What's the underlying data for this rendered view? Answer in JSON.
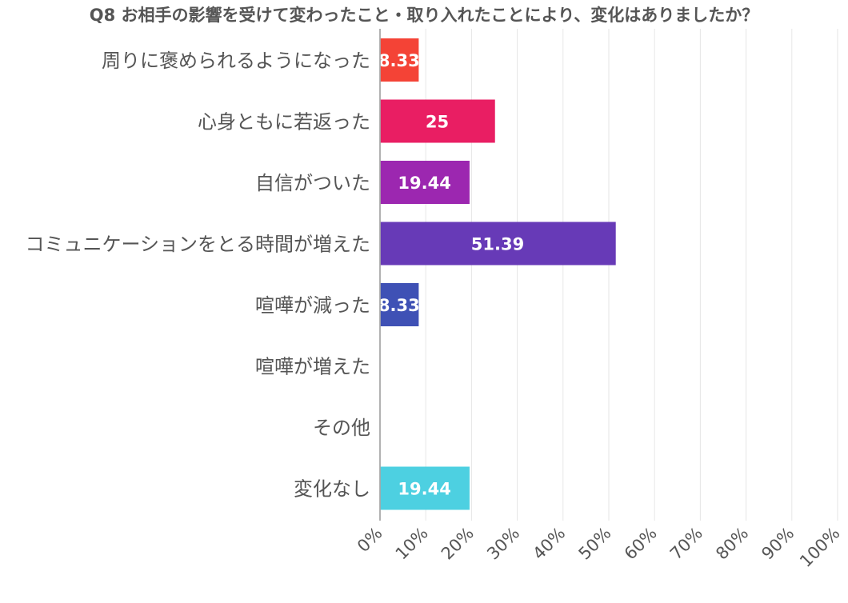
{
  "chart_data": {
    "type": "bar",
    "orientation": "horizontal",
    "title": "Q8 お相手の影響を受けて変わったこと・取り入れたことにより、変化はありましたか？",
    "xlabel": "",
    "ylabel": "",
    "categories": [
      "周りに褒められるようになった",
      "心身ともに若返った",
      "自信がついた",
      "コミュニケーションをとる時間が増えた",
      "喧嘩が減った",
      "喧嘩が増えた",
      "その他",
      "変化なし"
    ],
    "values": [
      8.33,
      25,
      19.44,
      51.39,
      8.33,
      0,
      0,
      19.44
    ],
    "value_labels": [
      "8.33",
      "25",
      "19.44",
      "51.39",
      "8.33",
      "",
      "",
      "19.44"
    ],
    "colors": [
      "#f44336",
      "#e91e63",
      "#9c27b0",
      "#673ab7",
      "#3f51b5",
      "#2196f3",
      "#03a9f4",
      "#4dd0e1"
    ],
    "xlim": [
      0,
      100
    ],
    "ticks": [
      0,
      10,
      20,
      30,
      40,
      50,
      60,
      70,
      80,
      90,
      100
    ],
    "tick_labels": [
      "0%",
      "10%",
      "20%",
      "30%",
      "40%",
      "50%",
      "60%",
      "70%",
      "80%",
      "90%",
      "100%"
    ],
    "grid": true,
    "legend": "none"
  }
}
